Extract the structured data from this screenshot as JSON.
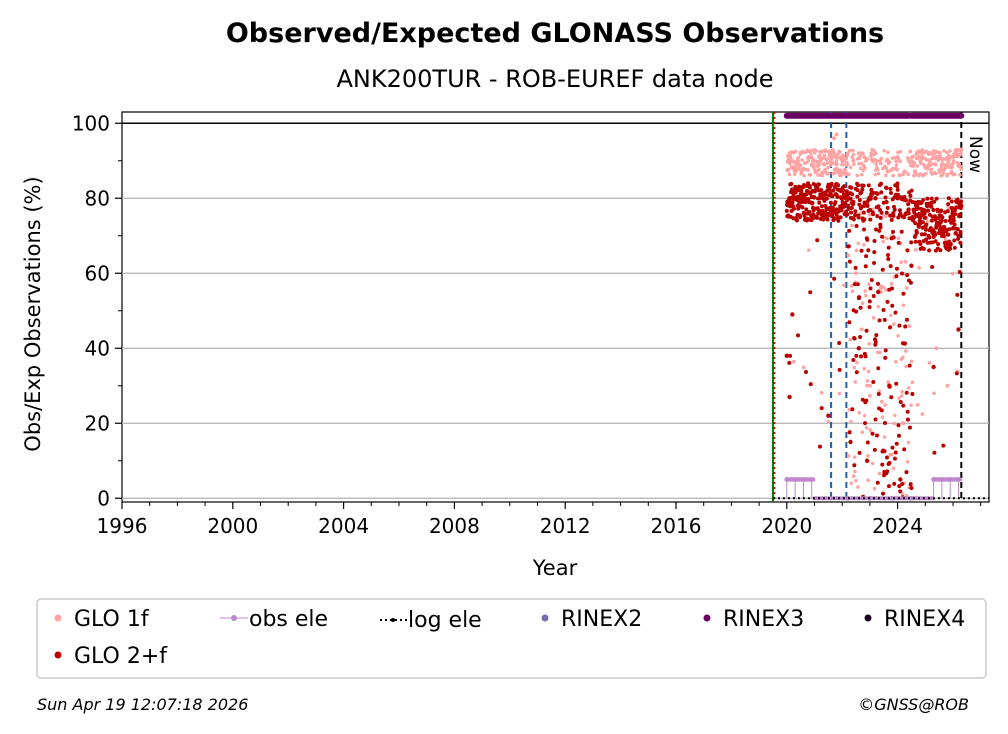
{
  "chart_data": {
    "type": "scatter",
    "title": "Observed/Expected GLONASS Observations",
    "subtitle": "ANK200TUR - ROB-EUREF data node",
    "xlabel": "Year",
    "ylabel": "Obs/Exp Observations (%)",
    "xlim": [
      1996,
      2027.3
    ],
    "ylim": [
      -1,
      103
    ],
    "xticks": [
      "1996",
      "2000",
      "2004",
      "2008",
      "2012",
      "2016",
      "2020",
      "2024"
    ],
    "yticks": [
      "0",
      "20",
      "40",
      "60",
      "80",
      "100"
    ],
    "hline": 100,
    "vlines": [
      {
        "x": 2019.5,
        "color": "#007f00",
        "style": "solid",
        "label": ""
      },
      {
        "x": 2019.55,
        "color": "#cc0000",
        "style": "dotted",
        "label": ""
      },
      {
        "x": 2021.6,
        "color": "#1f5fa8",
        "style": "dashed",
        "label": ""
      },
      {
        "x": 2022.15,
        "color": "#1f5fa8",
        "style": "dashed",
        "label": ""
      },
      {
        "x": 2026.3,
        "color": "#000000",
        "style": "dashed",
        "label": "Now"
      }
    ],
    "series": [
      {
        "name": "GLO 1f",
        "color": "#ffa3a3",
        "description": "mostly 85-93% from 2020.0 to 2026.3, heavy scatter 2022.2-2024.6",
        "points": [
          [
            2020.1,
            92
          ],
          [
            2020.4,
            90
          ],
          [
            2020.8,
            91
          ],
          [
            2021.2,
            90
          ],
          [
            2021.6,
            91
          ],
          [
            2022.0,
            89
          ],
          [
            2022.4,
            90
          ],
          [
            2022.8,
            91
          ],
          [
            2023.2,
            92
          ],
          [
            2023.6,
            90
          ],
          [
            2024.0,
            91
          ],
          [
            2024.4,
            90
          ],
          [
            2024.8,
            91
          ],
          [
            2025.2,
            92
          ],
          [
            2025.6,
            88
          ],
          [
            2026.0,
            91
          ],
          [
            2026.3,
            93
          ],
          [
            2021.7,
            96
          ],
          [
            2021.8,
            97
          ],
          [
            2022.5,
            60
          ],
          [
            2022.7,
            45
          ],
          [
            2023.0,
            30
          ],
          [
            2023.4,
            55
          ],
          [
            2023.8,
            70
          ],
          [
            2024.2,
            20
          ],
          [
            2025.4,
            40
          ],
          [
            2025.8,
            30
          ]
        ]
      },
      {
        "name": "GLO 2+f",
        "color": "#bb0000",
        "description": "mostly 75-85% from 2020.0 to 2026.3, dense scatter 0-80% 2022.2-2024.6",
        "points": [
          [
            2020.1,
            80
          ],
          [
            2020.4,
            78
          ],
          [
            2020.8,
            79
          ],
          [
            2021.2,
            80
          ],
          [
            2021.6,
            77
          ],
          [
            2022.0,
            78
          ],
          [
            2022.4,
            79
          ],
          [
            2022.8,
            78
          ],
          [
            2023.2,
            80
          ],
          [
            2023.6,
            79
          ],
          [
            2024.0,
            80
          ],
          [
            2024.4,
            76
          ],
          [
            2024.8,
            74
          ],
          [
            2025.2,
            72
          ],
          [
            2025.6,
            70
          ],
          [
            2026.0,
            72
          ],
          [
            2026.3,
            78
          ],
          [
            2020.1,
            27
          ],
          [
            2020.2,
            49
          ],
          [
            2020.0,
            38
          ],
          [
            2021.5,
            22
          ],
          [
            2022.3,
            15
          ],
          [
            2022.6,
            40
          ],
          [
            2022.9,
            10
          ],
          [
            2023.3,
            55
          ],
          [
            2023.7,
            30
          ],
          [
            2024.1,
            5
          ],
          [
            2024.5,
            62
          ],
          [
            2025.3,
            35
          ],
          [
            2026.2,
            45
          ]
        ]
      },
      {
        "name": "obs ele",
        "color": "#bf89cc",
        "description": "elevation cutoff markers around 0-5%",
        "points": [
          [
            2020.0,
            5
          ],
          [
            2020.3,
            5
          ],
          [
            2020.6,
            5
          ],
          [
            2020.9,
            5
          ],
          [
            2022.2,
            0
          ],
          [
            2023.0,
            0
          ],
          [
            2023.8,
            0
          ],
          [
            2024.5,
            0
          ],
          [
            2025.3,
            5
          ],
          [
            2025.6,
            5
          ],
          [
            2025.9,
            5
          ],
          [
            2026.2,
            5
          ]
        ]
      },
      {
        "name": "log ele",
        "color": "#000000",
        "description": "dotted line at 0 from 2019.5 to 2027"
      },
      {
        "name": "RINEX2",
        "color": "#7a6bb0",
        "points": []
      },
      {
        "name": "RINEX3",
        "color": "#6b0063",
        "segments": [
          [
            2020.0,
            2024.4
          ],
          [
            2024.5,
            2026.3
          ]
        ],
        "y": 102
      },
      {
        "name": "RINEX4",
        "color": "#1a0020",
        "points": []
      }
    ]
  },
  "legend": {
    "items": [
      {
        "label": "GLO 1f"
      },
      {
        "label": "obs ele"
      },
      {
        "label": "log ele"
      },
      {
        "label": "RINEX2"
      },
      {
        "label": "RINEX3"
      },
      {
        "label": "RINEX4"
      },
      {
        "label": "GLO 2+f"
      }
    ]
  },
  "footer": {
    "timestamp": "Sun Apr 19 12:07:18 2026",
    "credit": "©GNSS@ROB"
  }
}
